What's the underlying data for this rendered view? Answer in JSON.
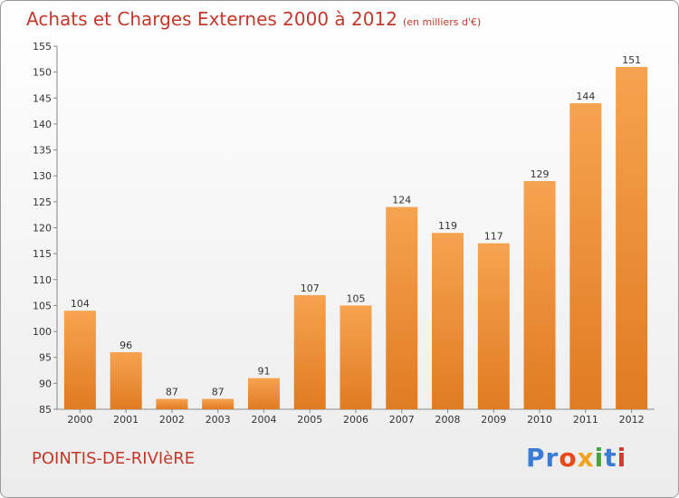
{
  "header": {
    "title": "Achats et Charges Externes 2000 à 2012",
    "unit": "(en milliers d'€)"
  },
  "footer": {
    "commune": "POINTIS-DE-RIVIèRE",
    "logo_letters": [
      "P",
      "r",
      "o",
      "x",
      "i",
      "t",
      "i"
    ]
  },
  "colors": {
    "bar_light": "#f6a34f",
    "bar_dark": "#e07b22",
    "title": "#c0392b",
    "logo": [
      "#3a7bd5",
      "#3a7bd5",
      "#e8481c",
      "#f2a21c",
      "#46a33e",
      "#3a7bd5",
      "#d9382c"
    ]
  },
  "chart_data": {
    "type": "bar",
    "title": "Achats et Charges Externes 2000 à 2012",
    "subtitle": "(en milliers d'€)",
    "xlabel": "",
    "ylabel": "",
    "categories": [
      "2000",
      "2001",
      "2002",
      "2003",
      "2004",
      "2005",
      "2006",
      "2007",
      "2008",
      "2009",
      "2010",
      "2011",
      "2012"
    ],
    "values": [
      104,
      96,
      87,
      87,
      91,
      107,
      105,
      124,
      119,
      117,
      129,
      144,
      151
    ],
    "ylim": [
      85,
      155
    ],
    "yticks": [
      85,
      90,
      95,
      100,
      105,
      110,
      115,
      120,
      125,
      130,
      135,
      140,
      145,
      150,
      155
    ],
    "grid": false,
    "legend": "none"
  }
}
